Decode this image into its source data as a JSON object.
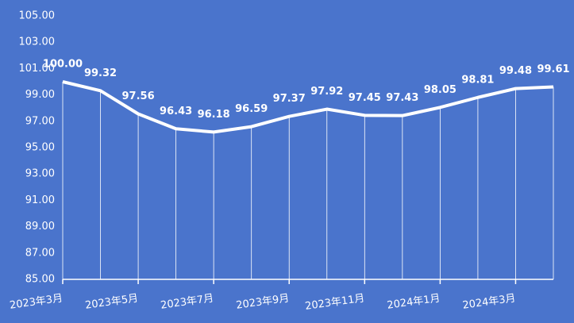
{
  "chart_data": {
    "type": "line",
    "categories": [
      "2023年3月",
      null,
      "2023年5月",
      null,
      "2023年7月",
      null,
      "2023年9月",
      null,
      "2023年11月",
      null,
      "2024年1月",
      null,
      "2024年3月",
      null
    ],
    "values": [
      100.0,
      99.32,
      97.56,
      96.43,
      96.18,
      96.59,
      97.37,
      97.92,
      97.45,
      97.43,
      98.05,
      98.81,
      99.48,
      99.61
    ],
    "value_labels": [
      "100.00",
      "99.32",
      "97.56",
      "96.43",
      "96.18",
      "96.59",
      "97.37",
      "97.92",
      "97.45",
      "97.43",
      "98.05",
      "98.81",
      "99.48",
      "99.61"
    ],
    "color": "#ffffff",
    "ylim": [
      85,
      105
    ],
    "yticks": [
      {
        "value": 85,
        "label": "85.00"
      },
      {
        "value": 87,
        "label": "87.00"
      },
      {
        "value": 89,
        "label": "89.00"
      },
      {
        "value": 91,
        "label": "91.00"
      },
      {
        "value": 93,
        "label": "93.00"
      },
      {
        "value": 95,
        "label": "95.00"
      },
      {
        "value": 97,
        "label": "97.00"
      },
      {
        "value": 99,
        "label": "99.00"
      },
      {
        "value": 101,
        "label": "101.00"
      },
      {
        "value": 103,
        "label": "103.00"
      },
      {
        "value": 105,
        "label": "105.00"
      }
    ]
  }
}
